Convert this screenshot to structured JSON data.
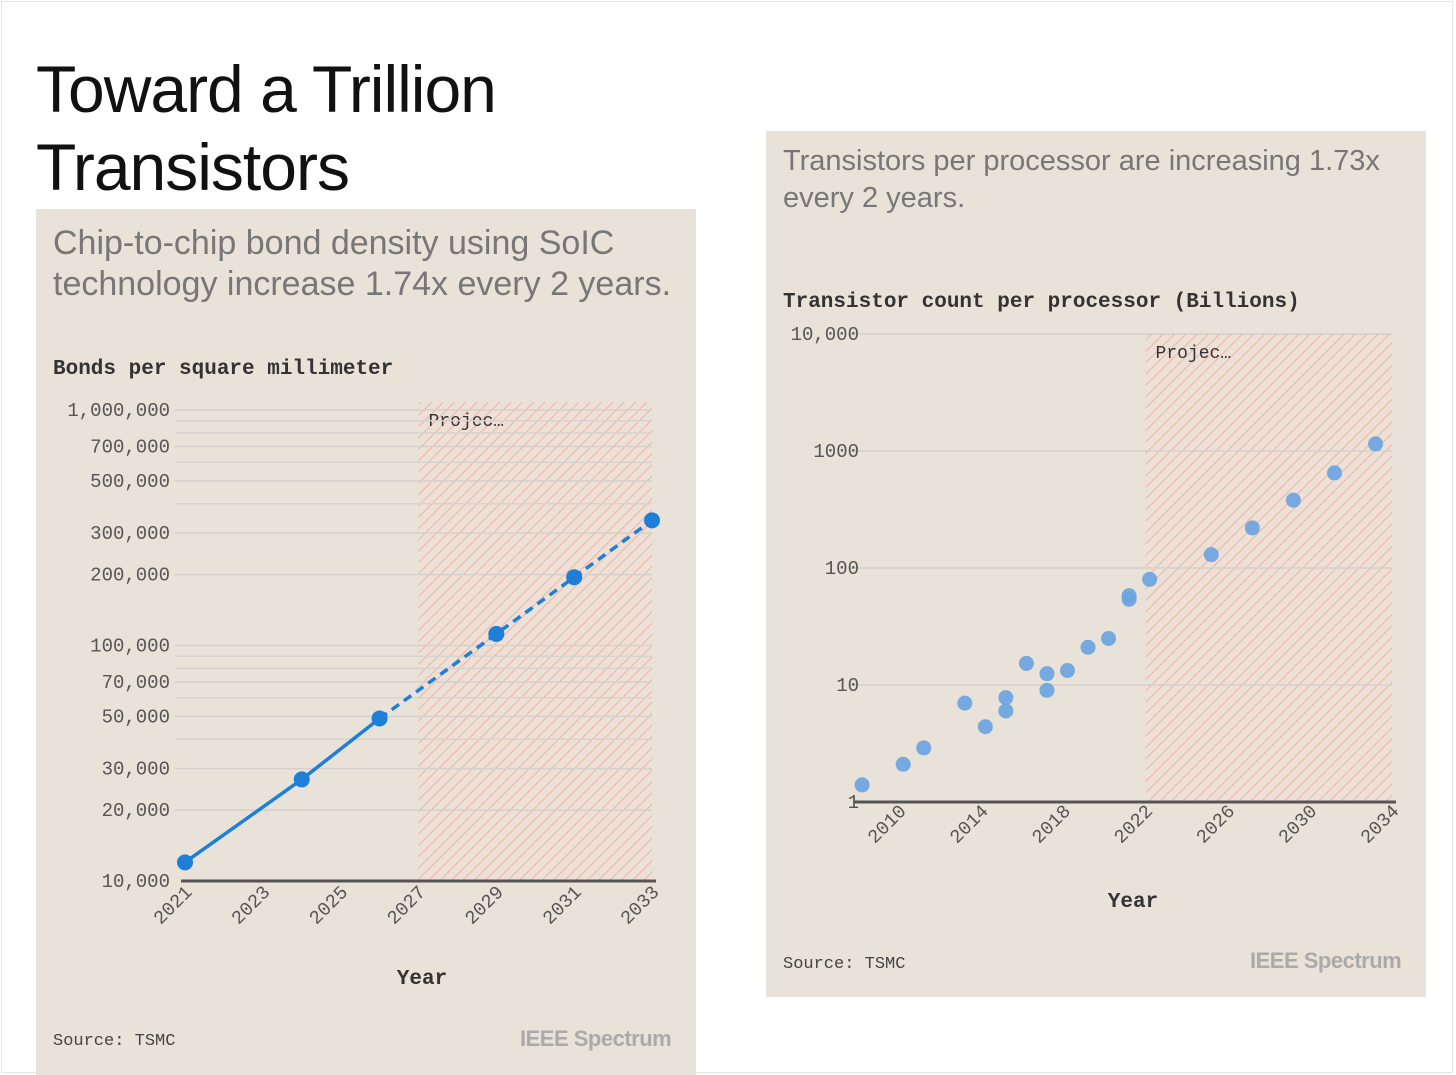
{
  "title": "Toward a Trillion Transistors",
  "colors": {
    "panel_bg": "#e8e2d9",
    "line_blue": "#1e7fd8",
    "dot_blue": "#6ba4e0",
    "hatch_red": "#f0a89a",
    "grid": "#d4d0cb",
    "axis": "#555555"
  },
  "brand_logo": "IEEE Spectrum",
  "chart_data": [
    {
      "type": "line",
      "subtitle": "Chip-to-chip bond density using SoIC technology increase 1.74x every 2 years.",
      "ylabel": "Bonds per square millimeter",
      "xlabel": "Year",
      "yscale": "log",
      "ylim": [
        10000,
        1000000
      ],
      "xlim": [
        2021,
        2033
      ],
      "x_ticks": [
        "2021",
        "2023",
        "2025",
        "2027",
        "2029",
        "2031",
        "2033"
      ],
      "y_ticks": [
        {
          "value": 1000000,
          "label": "1,000,000"
        },
        {
          "value": 700000,
          "label": "700,000"
        },
        {
          "value": 500000,
          "label": "500,000"
        },
        {
          "value": 300000,
          "label": "300,000"
        },
        {
          "value": 200000,
          "label": "200,000"
        },
        {
          "value": 100000,
          "label": "100,000"
        },
        {
          "value": 70000,
          "label": "70,000"
        },
        {
          "value": 50000,
          "label": "50,000"
        },
        {
          "value": 30000,
          "label": "30,000"
        },
        {
          "value": 20000,
          "label": "20,000"
        },
        {
          "value": 10000,
          "label": "10,000"
        }
      ],
      "minor_gridlines": [
        900000,
        800000,
        600000,
        400000,
        90000,
        80000,
        60000,
        40000
      ],
      "projection": {
        "label": "Projec…",
        "from": 2027,
        "to": 2033
      },
      "series": [
        {
          "x": [
            2021.0,
            2024.0,
            2026.0,
            2029.0,
            2031.0,
            2033.0
          ],
          "y": [
            12000,
            27000,
            49000,
            112000,
            195000,
            340000
          ],
          "solid_until_index": 2
        }
      ],
      "source": "Source: TSMC",
      "grid": true
    },
    {
      "type": "scatter",
      "subtitle": "Transistors per processor are increasing 1.73x every 2 years.",
      "ylabel": "Transistor count per processor (Billions)",
      "xlabel": "Year",
      "yscale": "log",
      "ylim": [
        1,
        10000
      ],
      "xlim": [
        2008,
        2034
      ],
      "x_ticks": [
        "2010",
        "2014",
        "2018",
        "2022",
        "2026",
        "2030",
        "2034"
      ],
      "y_ticks": [
        {
          "value": 10000,
          "label": "10,000"
        },
        {
          "value": 1000,
          "label": "1000"
        },
        {
          "value": 100,
          "label": "100"
        },
        {
          "value": 10,
          "label": "10"
        },
        {
          "value": 1,
          "label": "1"
        }
      ],
      "projection": {
        "label": "Projec…",
        "from": 2022,
        "to": 2034
      },
      "series": [
        {
          "x": [
            2008.2,
            2010.2,
            2011.2,
            2013.2,
            2014.2,
            2015.2,
            2015.2,
            2016.2,
            2017.2,
            2017.2,
            2018.2,
            2019.2,
            2020.2,
            2021.2,
            2021.2,
            2022.2,
            2025.2,
            2027.2,
            2029.2,
            2031.2,
            2033.2
          ],
          "y": [
            1.4,
            2.1,
            2.9,
            7.0,
            4.4,
            7.8,
            6.0,
            15.3,
            9.0,
            12.5,
            13.3,
            21,
            25,
            54,
            58,
            80,
            130,
            220,
            380,
            650,
            1150
          ]
        }
      ],
      "source": "Source: TSMC",
      "grid": true
    }
  ]
}
